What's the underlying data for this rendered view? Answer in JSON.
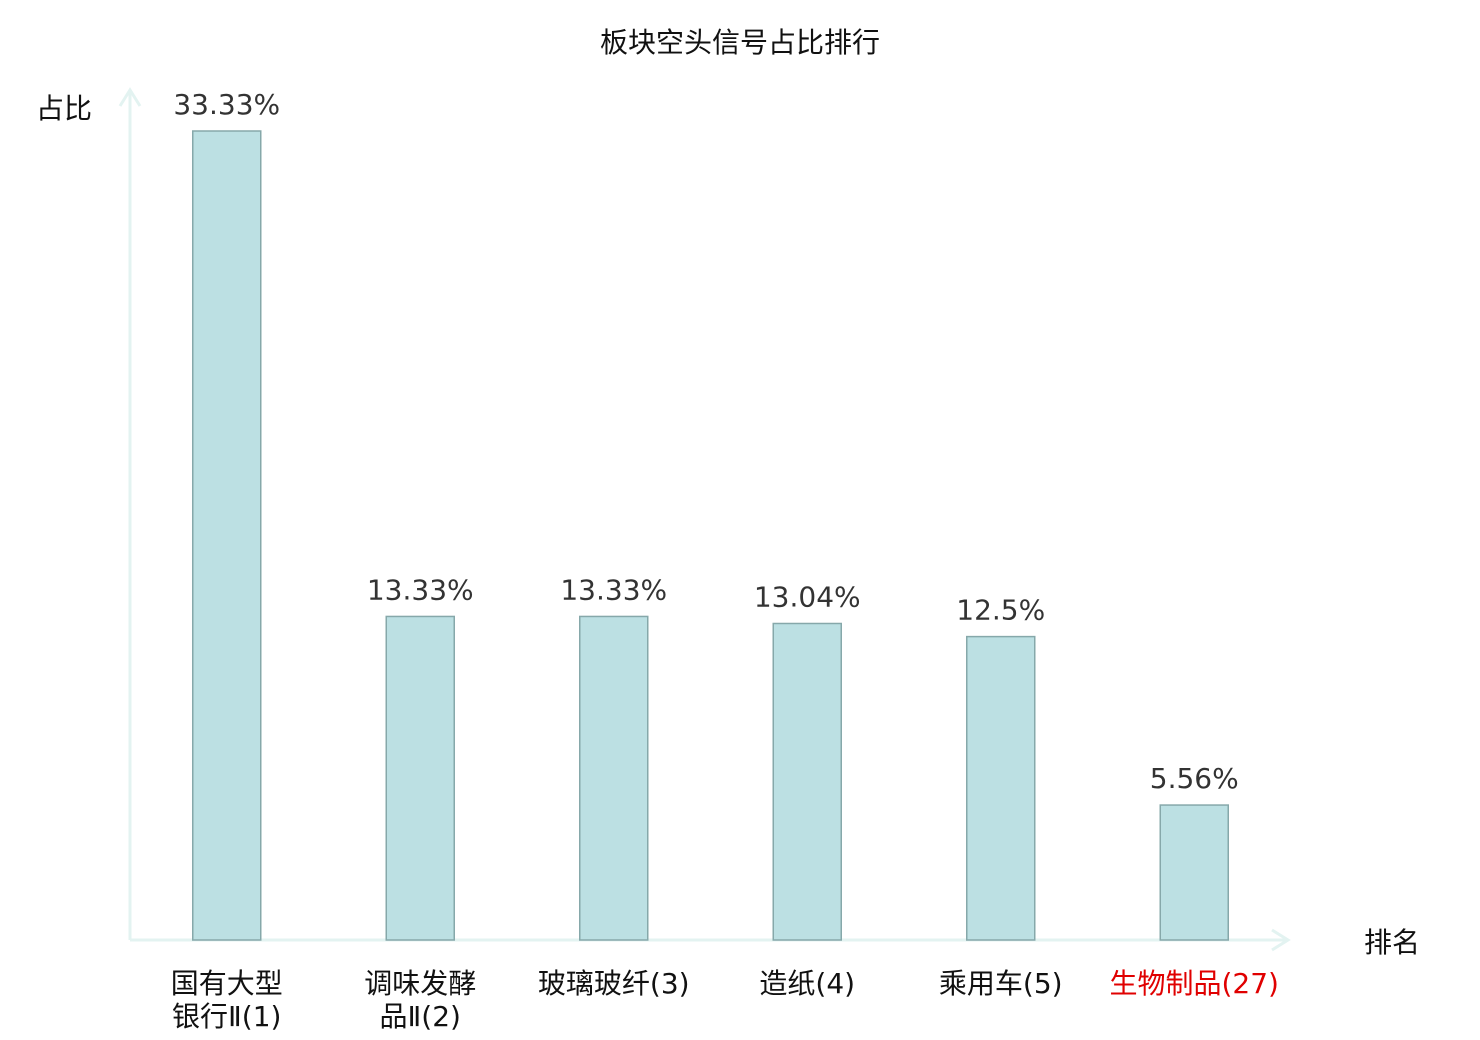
{
  "chart_data": {
    "type": "bar",
    "title": "板块空头信号占比排行",
    "xlabel": "排名",
    "ylabel": "占比",
    "categories": [
      [
        "国有大型",
        "银行Ⅱ(1)"
      ],
      [
        "调味发酵",
        "品Ⅱ(2)"
      ],
      [
        "玻璃玻纤(3)"
      ],
      [
        "造纸(4)"
      ],
      [
        "乘用车(5)"
      ],
      [
        "生物制品(27)"
      ]
    ],
    "values": [
      33.33,
      13.33,
      13.33,
      13.04,
      12.5,
      5.56
    ],
    "value_labels": [
      "33.33%",
      "13.33%",
      "13.33%",
      "13.04%",
      "12.5%",
      "5.56%"
    ],
    "highlight_index": 5,
    "ylim": [
      0,
      33.33
    ],
    "grid": false,
    "colors": {
      "bar_fill": "#bce0e3",
      "bar_stroke": "#86a8aa",
      "axis": "#e3f3f1",
      "highlight_text": "#e00000",
      "text": "#111111"
    }
  }
}
